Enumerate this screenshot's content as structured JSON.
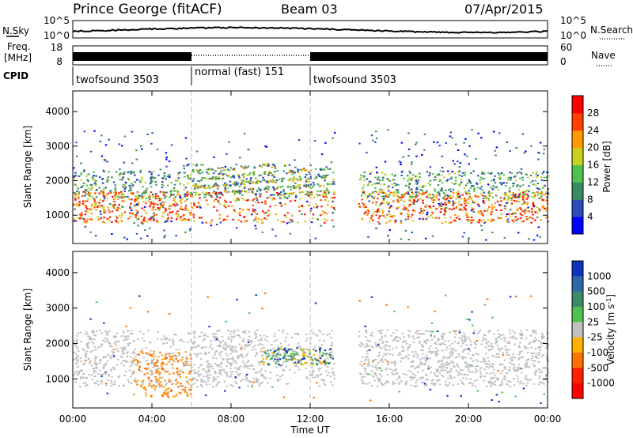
{
  "header": {
    "station": "Prince George (fitACF)",
    "beam": "Beam 03",
    "date": "07/Apr/2015"
  },
  "chart_data": [
    {
      "type": "line",
      "panel": "noise",
      "left_label": "N.Sky",
      "right_label": "N.Search",
      "left_ticks": [
        "10^5",
        "10^0"
      ],
      "right_ticks": [
        "10^5",
        "10^0"
      ]
    },
    {
      "type": "line",
      "panel": "frequency",
      "left_label": [
        "Freq.",
        "[MHz]"
      ],
      "right_label": "Nave",
      "left_ticks": [
        "18",
        "8"
      ],
      "right_ticks": [
        "60",
        "0"
      ]
    },
    {
      "type": "table",
      "panel": "cpid",
      "label": "CPID",
      "segments": [
        {
          "start": 0,
          "end": 6,
          "text": "twofsound 3503"
        },
        {
          "start": 6,
          "end": 12,
          "text": "normal (fast) 151"
        },
        {
          "start": 12,
          "end": 24,
          "text": "twofsound 3503"
        }
      ]
    },
    {
      "type": "heatmap",
      "panel": "power",
      "ylabel": "Slant Range [km]",
      "yticks": [
        1000,
        2000,
        3000,
        4000
      ],
      "ylim": [
        180,
        4600
      ],
      "colorbar_label": "Power [dB]",
      "colorbar_ticks": [
        4,
        8,
        12,
        16,
        20,
        24,
        28
      ],
      "colorbar_range": [
        0,
        30
      ],
      "colorbar_colors": [
        "#0000ff",
        "#2a4db8",
        "#3a8a60",
        "#50c050",
        "#c8d020",
        "#ff9a00",
        "#ff4000",
        "#ff0000"
      ]
    },
    {
      "type": "heatmap",
      "panel": "velocity",
      "ylabel": "Slant Range [km]",
      "yticks": [
        1000,
        2000,
        3000,
        4000
      ],
      "ylim": [
        180,
        4600
      ],
      "colorbar_label": "Velocity [m s^-1]",
      "colorbar_ticks": [
        "1000",
        "500",
        "100",
        "25",
        "-25",
        "-100",
        "-500",
        "-1000"
      ],
      "colorbar_colors": [
        "#1030c0",
        "#2f68a8",
        "#3c8a68",
        "#50c050",
        "#c0c0c0",
        "#ffb000",
        "#ff7000",
        "#ff2000",
        "#ff0000"
      ]
    }
  ],
  "x_axis": {
    "label": "Time UT",
    "ticks": [
      "00:00",
      "04:00",
      "08:00",
      "12:00",
      "16:00",
      "20:00",
      "00:00"
    ],
    "range_hours": [
      0,
      24
    ]
  }
}
